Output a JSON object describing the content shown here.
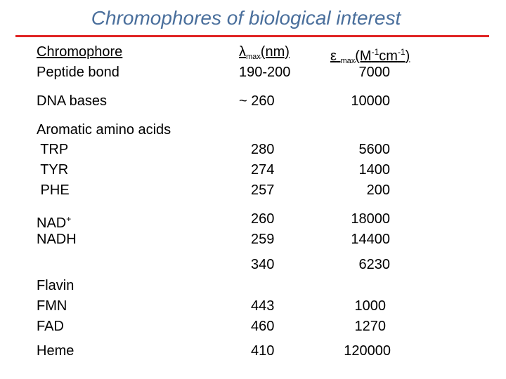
{
  "slide": {
    "title": "Chromophores of biological interest",
    "accent_color": "#e02424",
    "title_color": "#4a6f9c"
  },
  "headers": {
    "chromophore": "Chromophore",
    "lambda_symbol": "λ",
    "lambda_sub": "max",
    "lambda_unit": "(nm)",
    "eps_symbol": "ε",
    "eps_sub": "max",
    "eps_unit_a": "(M",
    "eps_sup1": "-1",
    "eps_unit_b": "cm",
    "eps_sup2": "-1",
    "eps_unit_c": ")"
  },
  "rows": {
    "peptide": {
      "name": "Peptide bond",
      "lambda": "190-200",
      "eps": "7000"
    },
    "dna": {
      "name": "DNA bases",
      "lambda": "~ 260",
      "eps": "10000"
    },
    "aromatic": {
      "name": "Aromatic amino acids"
    },
    "trp": {
      "name": " TRP",
      "lambda": "280",
      "eps": "5600"
    },
    "tyr": {
      "name": " TYR",
      "lambda": "274",
      "eps": "1400"
    },
    "phe": {
      "name": " PHE",
      "lambda": "257",
      "eps": "200"
    },
    "nad_plus": {
      "name": "NAD",
      "sup": "+",
      "lambda": "260",
      "eps": "18000"
    },
    "nadh": {
      "name": "NADH",
      "lambda": "259",
      "eps": "14400"
    },
    "nadh_extra": {
      "lambda": "340",
      "eps": "6230"
    },
    "flavin": {
      "name": "Flavin"
    },
    "fmn": {
      "name": "FMN",
      "lambda": "443",
      "eps": "1000"
    },
    "fad": {
      "name": "FAD",
      "lambda": "460",
      "eps": "1270"
    },
    "heme": {
      "name": "Heme",
      "lambda": "410",
      "eps": "120000"
    }
  }
}
